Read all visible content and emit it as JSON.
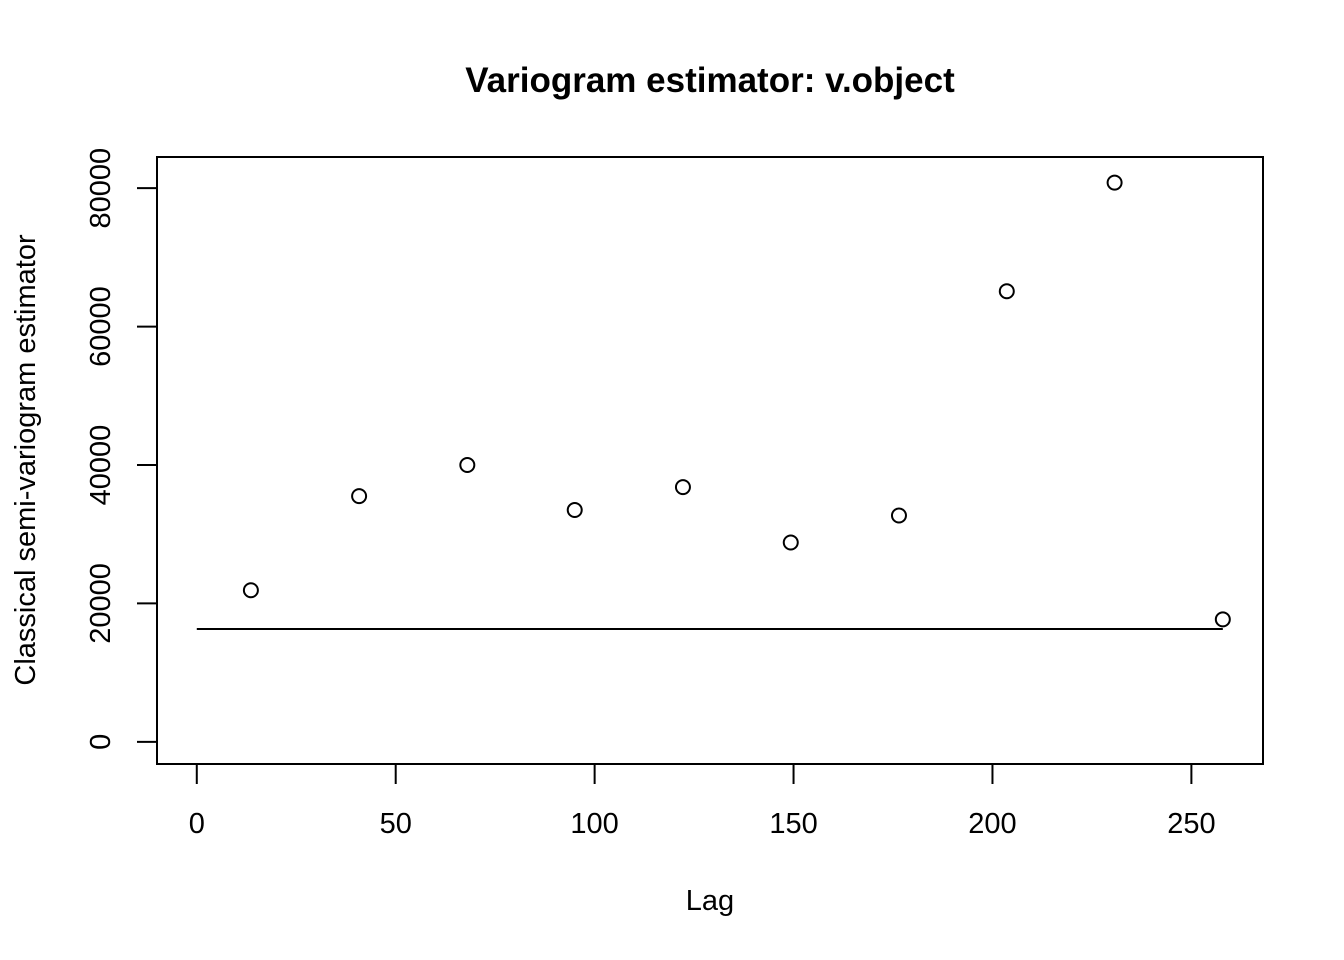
{
  "chart_data": {
    "type": "scatter",
    "title": "Variogram estimator: v.object",
    "xlabel": "Lag",
    "ylabel": "Classical semi-variogram estimator",
    "xlim": [
      -10,
      268
    ],
    "ylim": [
      -3200,
      84500
    ],
    "x_ticks": [
      0,
      50,
      100,
      150,
      200,
      250
    ],
    "x_tick_labels": [
      "0",
      "50",
      "100",
      "150",
      "200",
      "250"
    ],
    "y_ticks": [
      0,
      20000,
      40000,
      60000,
      80000
    ],
    "y_tick_labels": [
      "0",
      "20000",
      "40000",
      "60000",
      "80000"
    ],
    "grid": false,
    "legend": "none",
    "points": {
      "x": [
        13.6,
        40.8,
        68.0,
        95.0,
        122.2,
        149.3,
        176.5,
        203.6,
        230.7,
        257.9
      ],
      "y": [
        21900,
        35500,
        40000,
        33500,
        36800,
        28800,
        32700,
        65100,
        80800,
        17700
      ]
    },
    "reference_line": {
      "x": [
        0,
        257.9
      ],
      "y": [
        16300,
        16300
      ]
    }
  }
}
